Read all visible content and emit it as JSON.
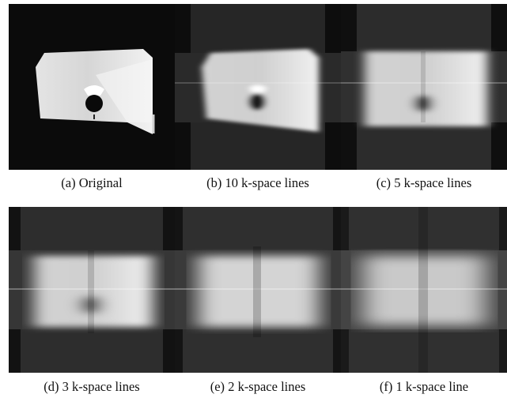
{
  "figure": {
    "panels": [
      {
        "label": "(a)",
        "caption": "Original",
        "k_space_lines": null
      },
      {
        "label": "(b)",
        "caption": "10 k-space lines",
        "k_space_lines": 10
      },
      {
        "label": "(c)",
        "caption": "5 k-space lines",
        "k_space_lines": 5
      },
      {
        "label": "(d)",
        "caption": "3 k-space lines",
        "k_space_lines": 3
      },
      {
        "label": "(e)",
        "caption": "2 k-space lines",
        "k_space_lines": 2
      },
      {
        "label": "(f)",
        "caption": "1 k-space line",
        "k_space_lines": 1
      }
    ]
  }
}
